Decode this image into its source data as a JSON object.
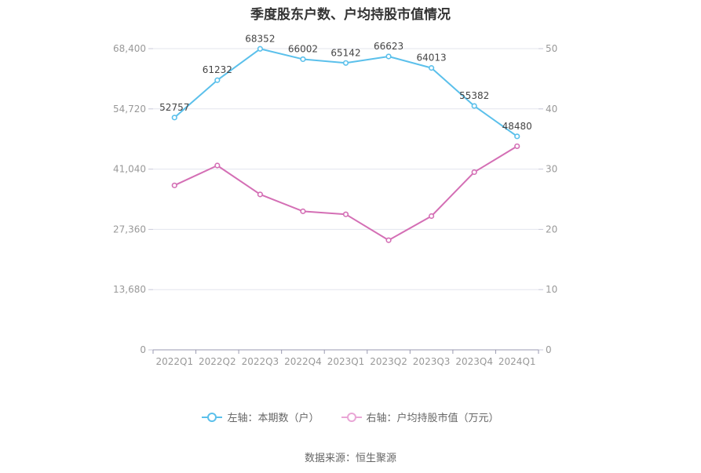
{
  "chart_data": {
    "type": "line",
    "title": "季度股东户数、户均持股市值情况",
    "categories": [
      "2022Q1",
      "2022Q2",
      "2022Q3",
      "2022Q4",
      "2023Q1",
      "2023Q2",
      "2023Q3",
      "2023Q4",
      "2024Q1"
    ],
    "series": [
      {
        "name": "左轴：本期数（户）",
        "axis": "left",
        "color": "#5bc0eb",
        "values": [
          52757,
          61232,
          68352,
          66002,
          65142,
          66623,
          64013,
          55382,
          48480
        ],
        "labels": [
          "52757",
          "61232",
          "68352",
          "66002",
          "65142",
          "66623",
          "64013",
          "55382",
          "48480"
        ]
      },
      {
        "name": "右轴：户均持股市值（万元）",
        "axis": "right",
        "color": "#d46fb5",
        "values": [
          27.3,
          30.6,
          25.8,
          23.0,
          22.5,
          18.2,
          22.2,
          29.5,
          33.8
        ]
      }
    ],
    "y_left": {
      "min": 0,
      "max": 68400,
      "ticks": [
        0,
        13680,
        27360,
        41040,
        54720,
        68400
      ],
      "tick_labels": [
        "0",
        "13,680",
        "27,360",
        "41,040",
        "54,720",
        "68,400"
      ]
    },
    "y_right": {
      "min": 0,
      "max": 50,
      "ticks": [
        0,
        10,
        20,
        30,
        40,
        50
      ],
      "tick_labels": [
        "0",
        "10",
        "20",
        "30",
        "40",
        "50"
      ]
    },
    "grid": true,
    "legend_position": "bottom"
  },
  "source": "数据来源：恒生聚源"
}
